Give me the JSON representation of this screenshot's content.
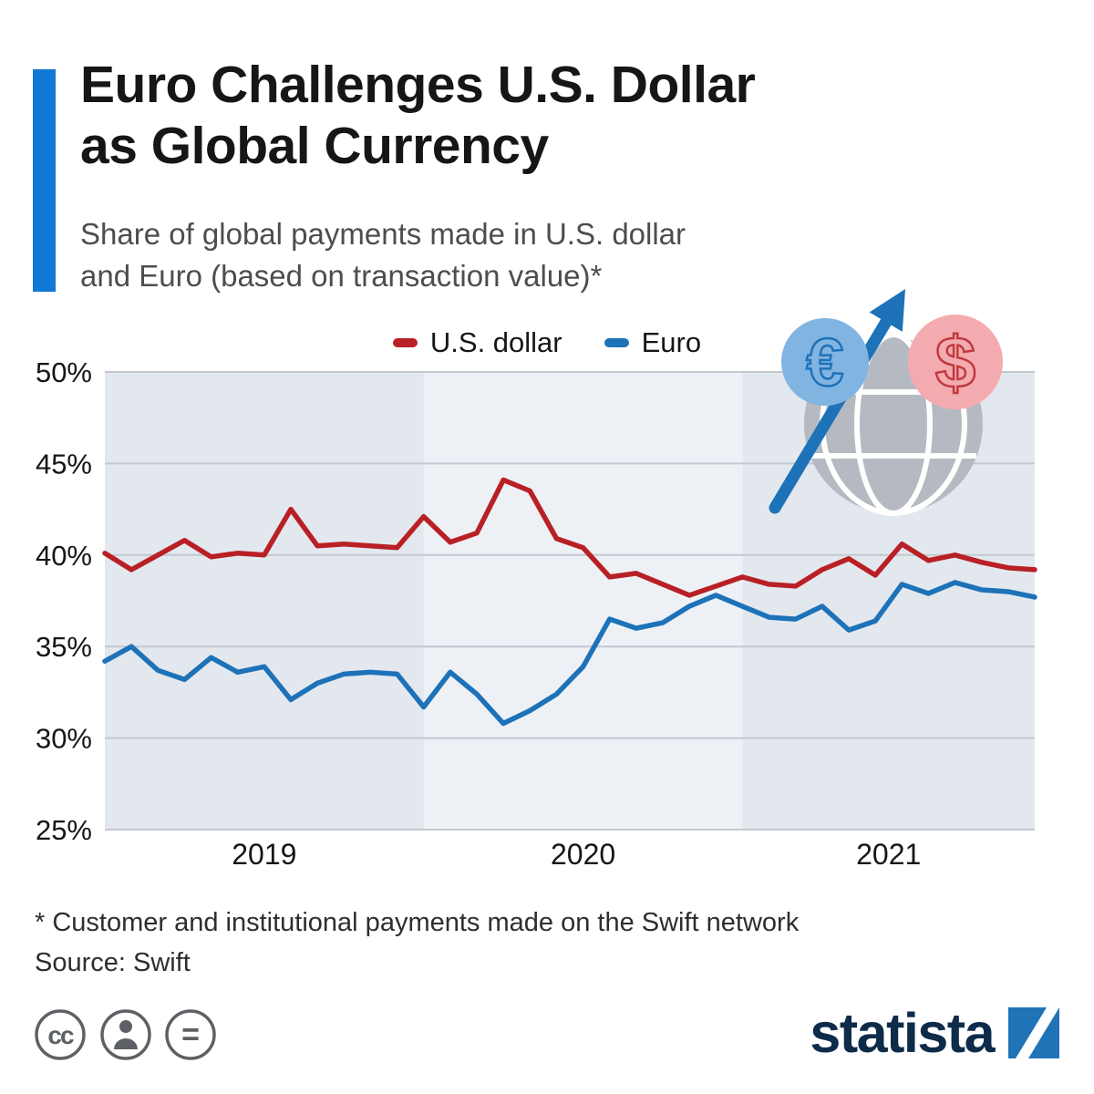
{
  "header": {
    "title": "Euro Challenges U.S. Dollar\nas Global Currency",
    "subtitle": "Share of global payments made in U.S. dollar\nand Euro (based on transaction value)*"
  },
  "legend": [
    {
      "label": "U.S. dollar",
      "color": "#b82025"
    },
    {
      "label": "Euro",
      "color": "#1d72b8"
    }
  ],
  "chart_data": {
    "type": "line",
    "x_unit": "month",
    "x_start": "2019-01",
    "x_end": "2021-12",
    "categories_years": [
      "2019",
      "2020",
      "2021"
    ],
    "series": [
      {
        "name": "U.S. dollar",
        "color": "#b82025",
        "values": [
          40.1,
          39.2,
          40.0,
          40.8,
          39.9,
          40.1,
          40.0,
          42.5,
          40.5,
          40.6,
          40.5,
          40.4,
          42.1,
          40.7,
          41.2,
          44.1,
          43.5,
          40.9,
          40.4,
          38.8,
          39.0,
          38.4,
          37.8,
          38.3,
          38.8,
          38.4,
          38.3,
          39.2,
          39.8,
          38.9,
          40.6,
          39.7,
          40.0,
          39.6,
          39.3,
          39.2
        ]
      },
      {
        "name": "Euro",
        "color": "#1d72b8",
        "values": [
          34.2,
          35.0,
          33.7,
          33.2,
          34.4,
          33.6,
          33.9,
          32.1,
          33.0,
          33.5,
          33.6,
          33.5,
          31.7,
          33.6,
          32.4,
          30.8,
          31.5,
          32.4,
          33.9,
          36.5,
          36.0,
          36.3,
          37.2,
          37.8,
          37.2,
          36.6,
          36.5,
          37.2,
          35.9,
          36.4,
          38.4,
          37.9,
          38.5,
          38.1,
          38.0,
          37.7
        ]
      }
    ],
    "ylim": [
      25,
      50
    ],
    "yticks": [
      "50%",
      "45%",
      "40%",
      "35%",
      "30%",
      "25%"
    ],
    "grid": true,
    "plot_bg": "#edf1f6",
    "band_bg": "#e3e8ef",
    "gridline_color": "#c3c8d0"
  },
  "icons": {
    "euro_symbol": "€",
    "dollar_symbol": "$",
    "cc_label": "cc",
    "equal_label": "="
  },
  "footer": {
    "footnote": "* Customer and institutional payments made on the Swift network",
    "source": "Source: Swift"
  },
  "branding": {
    "logo_text": "statista"
  }
}
